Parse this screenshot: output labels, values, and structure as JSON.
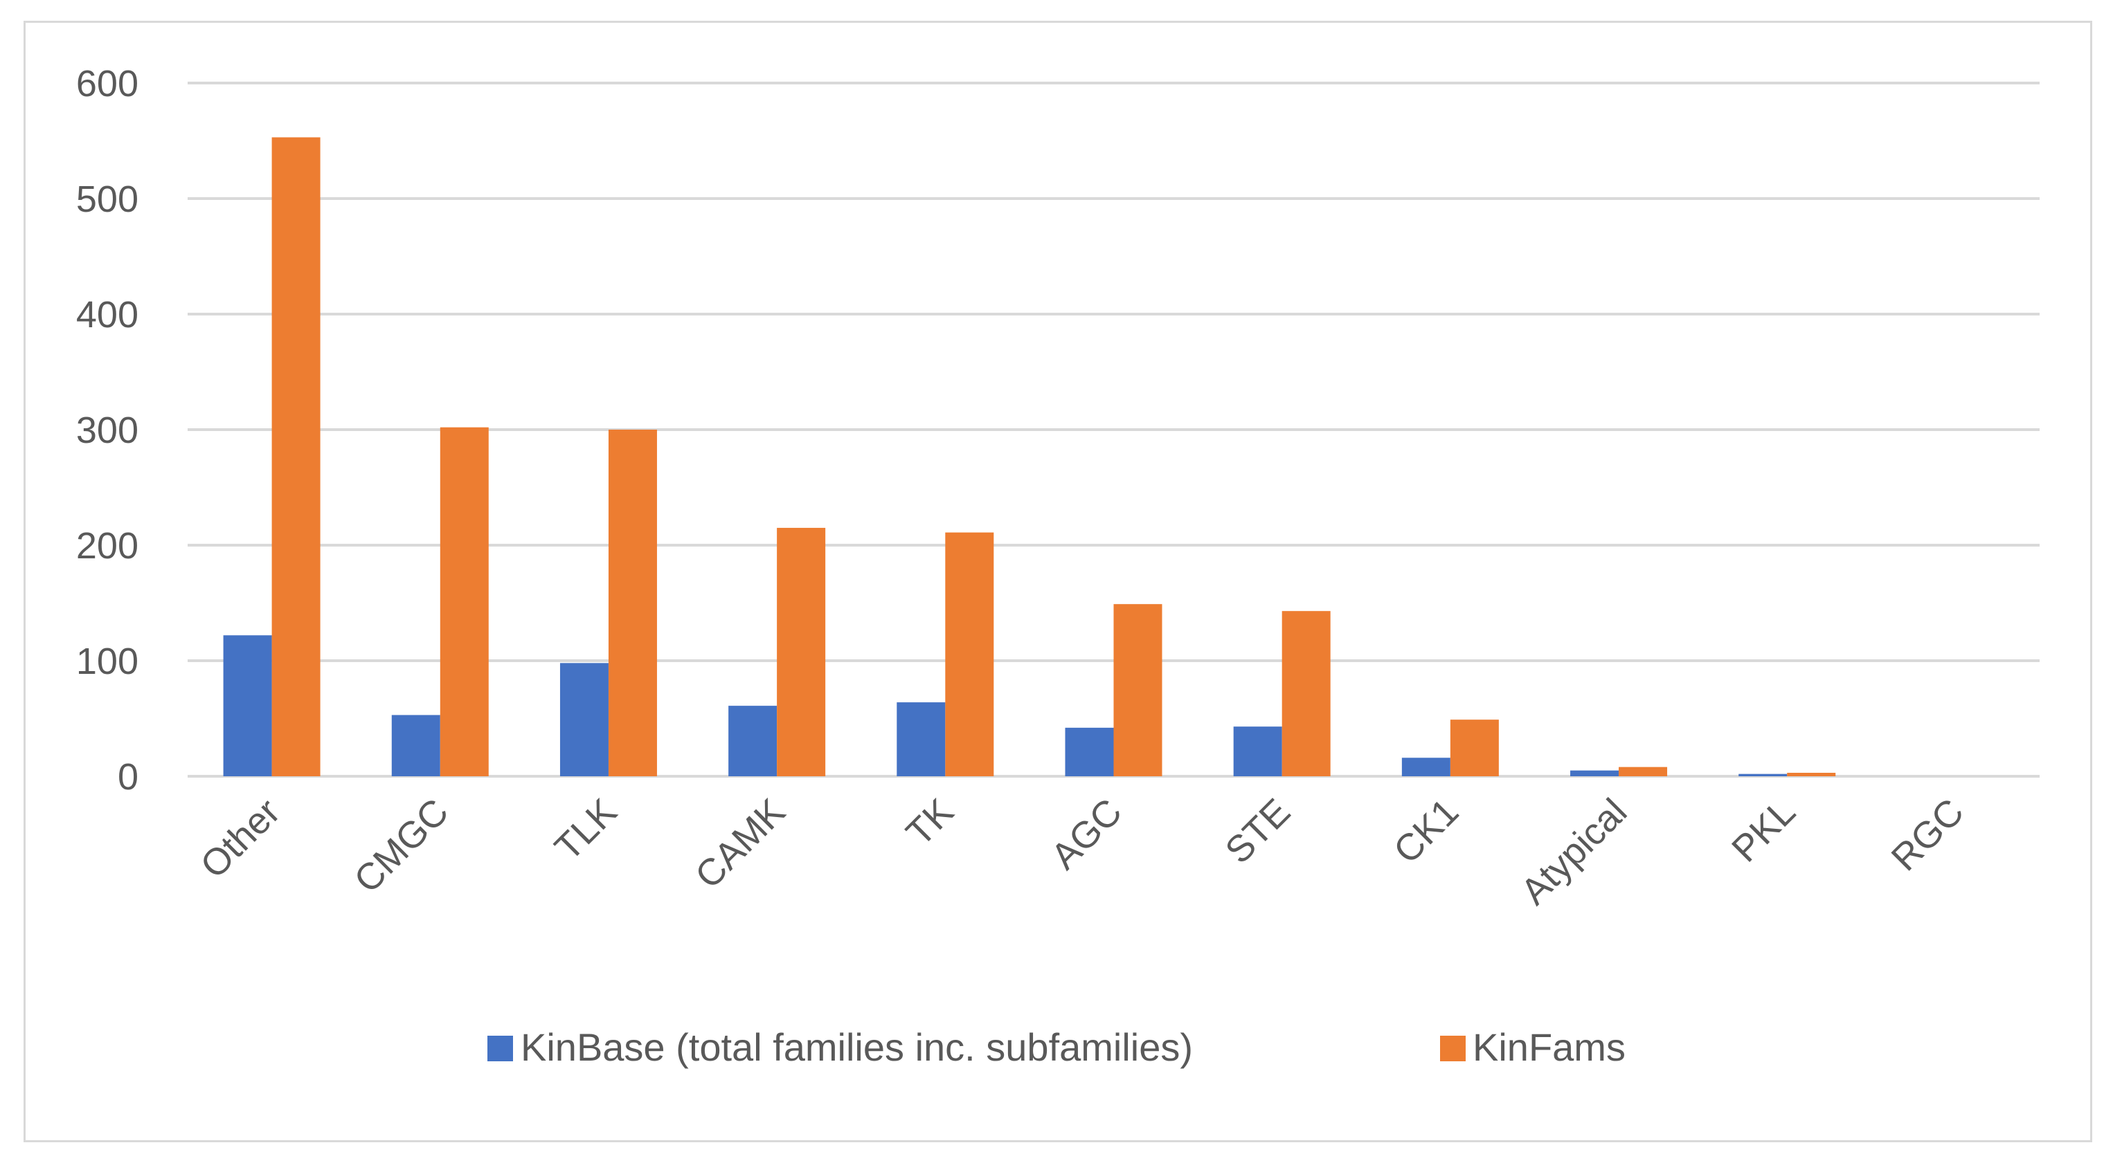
{
  "chart_data": {
    "type": "bar",
    "title": "",
    "xlabel": "",
    "ylabel": "",
    "ylim": [
      0,
      600
    ],
    "yticks": [
      0,
      100,
      200,
      300,
      400,
      500,
      600
    ],
    "grid": true,
    "legend_position": "bottom",
    "categories": [
      "Other",
      "CMGC",
      "TLK",
      "CAMK",
      "TK",
      "AGC",
      "STE",
      "CK1",
      "Atypical",
      "PKL",
      "RGC"
    ],
    "series": [
      {
        "name": "KinBase (total families inc. subfamilies)",
        "color": "#4472C4",
        "values": [
          122,
          53,
          98,
          61,
          64,
          42,
          43,
          16,
          5,
          2,
          0
        ]
      },
      {
        "name": "KinFams",
        "color": "#ED7D31",
        "values": [
          553,
          302,
          300,
          215,
          211,
          149,
          143,
          49,
          8,
          3,
          0
        ]
      }
    ]
  }
}
